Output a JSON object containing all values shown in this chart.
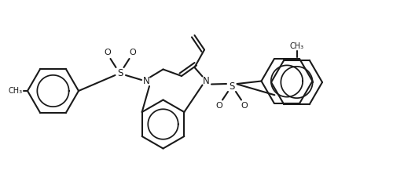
{
  "background_color": "#ffffff",
  "line_color": "#1a1a1a",
  "line_width": 1.5,
  "figsize": [
    5.0,
    2.31
  ],
  "dpi": 100,
  "xlim": [
    0,
    10
  ],
  "ylim": [
    0,
    4.62
  ]
}
